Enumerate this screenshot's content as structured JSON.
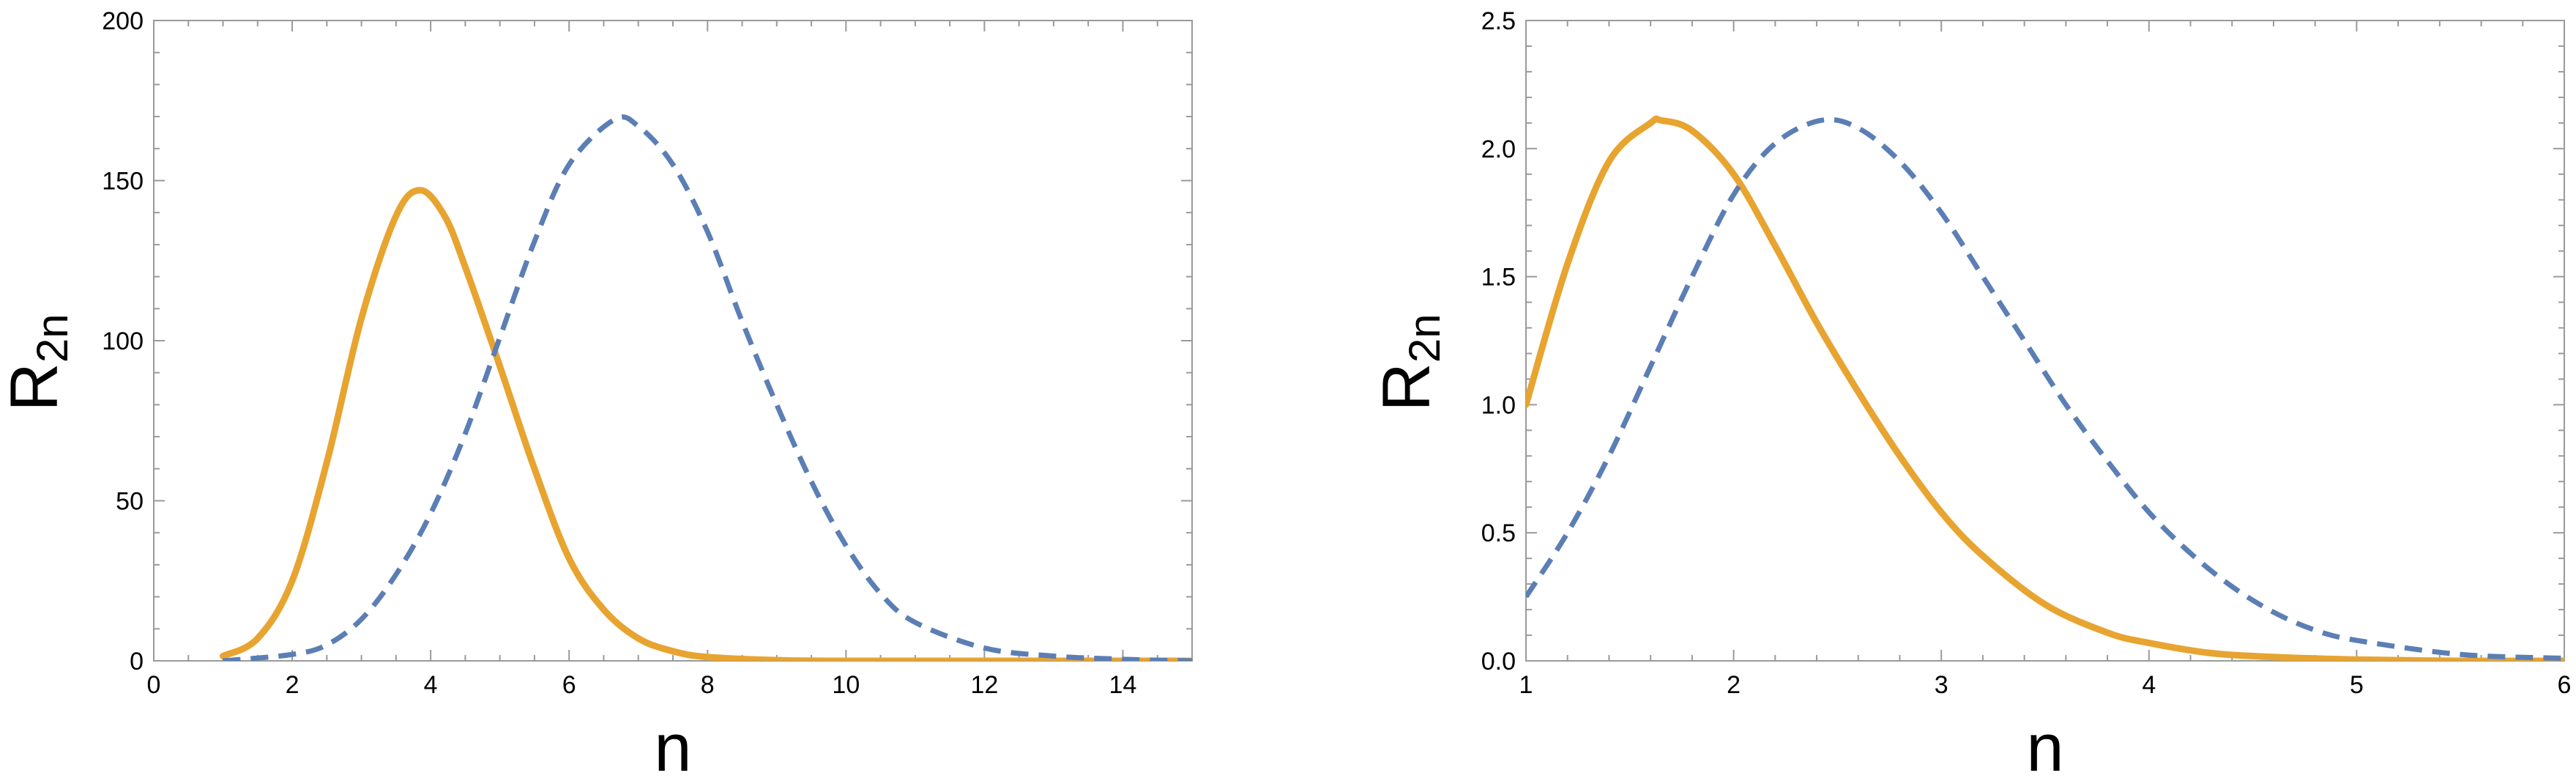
{
  "chart_data": [
    {
      "type": "line",
      "xlabel": "n",
      "ylabel": {
        "main": "R",
        "sub": "2n"
      },
      "xlim": [
        0,
        15
      ],
      "ylim": [
        0,
        200
      ],
      "x_ticks": [
        0,
        2,
        4,
        6,
        8,
        10,
        12,
        14
      ],
      "x_tick_labels": [
        "0",
        "2",
        "4",
        "6",
        "8",
        "10",
        "12",
        "14"
      ],
      "y_ticks": [
        0,
        50,
        100,
        150,
        200
      ],
      "y_tick_labels": [
        "0",
        "50",
        "100",
        "150",
        "200"
      ],
      "grid": false,
      "frame": true,
      "series": [
        {
          "color": "#E8A430",
          "style": "solid",
          "x": [
            1,
            1.5,
            2,
            2.5,
            3,
            3.5,
            3.85,
            4.2,
            4.5,
            5,
            5.5,
            6,
            6.5,
            7,
            7.5,
            8,
            9,
            10,
            12,
            15
          ],
          "y": [
            1.5,
            7,
            25,
            62,
            107,
            139,
            147,
            139,
            123,
            92,
            60,
            32,
            16,
            7,
            3,
            1.2,
            0.2,
            0,
            0,
            0
          ]
        },
        {
          "color": "#5B7EB5",
          "style": "dashed",
          "x": [
            1,
            2,
            2.5,
            3,
            3.5,
            4,
            4.5,
            5,
            5.5,
            6,
            6.65,
            7,
            7.5,
            8,
            8.5,
            9,
            9.5,
            10,
            10.5,
            11,
            12,
            13,
            14,
            15
          ],
          "y": [
            0,
            2,
            5,
            13,
            27,
            46,
            71,
            101,
            131,
            155,
            169,
            167,
            155,
            134,
            106,
            80,
            56,
            36,
            21,
            12,
            4,
            1.5,
            0.5,
            0
          ]
        }
      ]
    },
    {
      "type": "line",
      "xlabel": "n",
      "ylabel": {
        "main": "R",
        "sub": "2n"
      },
      "xlim": [
        1,
        6
      ],
      "ylim": [
        0,
        2.5
      ],
      "x_ticks": [
        1,
        2,
        3,
        4,
        5,
        6
      ],
      "x_tick_labels": [
        "1",
        "2",
        "3",
        "4",
        "5",
        "6"
      ],
      "y_ticks": [
        0,
        0.5,
        1.0,
        1.5,
        2.0,
        2.5
      ],
      "y_tick_labels": [
        "0.0",
        "0.5",
        "1.0",
        "1.5",
        "2.0",
        "2.5"
      ],
      "grid": false,
      "frame": true,
      "series": [
        {
          "color": "#E8A430",
          "style": "solid",
          "x": [
            1,
            1.2,
            1.4,
            1.6,
            1.65,
            1.8,
            2,
            2.2,
            2.4,
            2.6,
            2.8,
            3,
            3.2,
            3.5,
            3.8,
            4,
            4.3,
            4.6,
            5,
            5.5,
            6
          ],
          "y": [
            1.0,
            1.55,
            1.95,
            2.1,
            2.11,
            2.07,
            1.9,
            1.62,
            1.32,
            1.05,
            0.8,
            0.58,
            0.41,
            0.22,
            0.11,
            0.07,
            0.03,
            0.015,
            0.005,
            0,
            0
          ]
        },
        {
          "color": "#5B7EB5",
          "style": "dashed",
          "x": [
            1,
            1.2,
            1.4,
            1.6,
            1.8,
            2,
            2.2,
            2.42,
            2.6,
            2.8,
            3,
            3.2,
            3.4,
            3.6,
            3.8,
            4,
            4.2,
            4.4,
            4.6,
            4.8,
            5,
            5.5,
            6
          ],
          "y": [
            0.25,
            0.5,
            0.8,
            1.15,
            1.5,
            1.82,
            2.02,
            2.11,
            2.08,
            1.95,
            1.75,
            1.5,
            1.25,
            1.0,
            0.78,
            0.58,
            0.42,
            0.29,
            0.19,
            0.12,
            0.08,
            0.025,
            0.01
          ]
        }
      ]
    }
  ]
}
